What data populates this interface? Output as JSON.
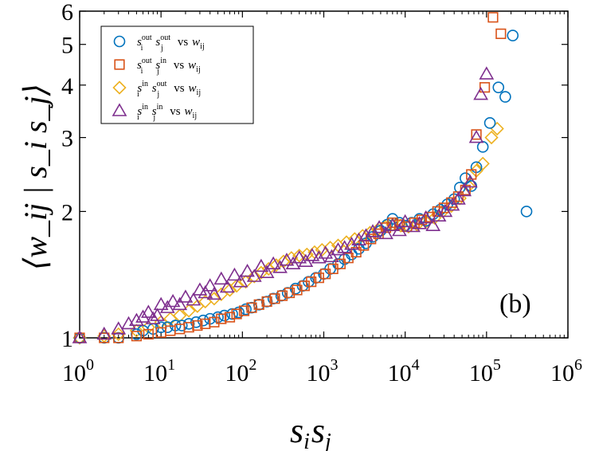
{
  "chart_data": {
    "type": "scatter",
    "title": "",
    "panel_label": "(b)",
    "xlabel": {
      "base": "s",
      "sub1": "i",
      "base2": "s",
      "sub2": "j"
    },
    "ylabel": "⟨w_ij | s_i s_j⟩",
    "xscale": "log",
    "yscale": "log",
    "xlim": [
      1,
      1000000
    ],
    "ylim": [
      1,
      6
    ],
    "x_ticks": [
      {
        "value": 1,
        "base": "10",
        "exp": "0"
      },
      {
        "value": 10,
        "base": "10",
        "exp": "1"
      },
      {
        "value": 100,
        "base": "10",
        "exp": "2"
      },
      {
        "value": 1000,
        "base": "10",
        "exp": "3"
      },
      {
        "value": 10000,
        "base": "10",
        "exp": "4"
      },
      {
        "value": 100000,
        "base": "10",
        "exp": "5"
      },
      {
        "value": 1000000,
        "base": "10",
        "exp": "6"
      }
    ],
    "y_ticks": [
      {
        "value": 1,
        "label": "1"
      },
      {
        "value": 2,
        "label": "2"
      },
      {
        "value": 3,
        "label": "3"
      },
      {
        "value": 4,
        "label": "4"
      },
      {
        "value": 5,
        "label": "5"
      },
      {
        "value": 6,
        "label": "6"
      }
    ],
    "grid": false,
    "legend_position": "top-left",
    "series": [
      {
        "name": "s_i^out s_j^out vs w_ij",
        "legend": {
          "s": "s",
          "sup1": "out",
          "sub1": "i",
          "sup2": "out",
          "sub2": "j",
          "vs": "vs",
          "w": "w",
          "wsub": "ij"
        },
        "marker": "circle",
        "color": "#0072BD",
        "points": [
          [
            1,
            1.0
          ],
          [
            2,
            1.0
          ],
          [
            3,
            1.0
          ],
          [
            5,
            1.02
          ],
          [
            6,
            1.04
          ],
          [
            8,
            1.05
          ],
          [
            10,
            1.06
          ],
          [
            12,
            1.06
          ],
          [
            15,
            1.07
          ],
          [
            18,
            1.07
          ],
          [
            22,
            1.08
          ],
          [
            27,
            1.09
          ],
          [
            33,
            1.1
          ],
          [
            40,
            1.11
          ],
          [
            50,
            1.12
          ],
          [
            60,
            1.13
          ],
          [
            75,
            1.14
          ],
          [
            90,
            1.15
          ],
          [
            110,
            1.17
          ],
          [
            130,
            1.18
          ],
          [
            160,
            1.2
          ],
          [
            200,
            1.22
          ],
          [
            240,
            1.24
          ],
          [
            300,
            1.26
          ],
          [
            360,
            1.28
          ],
          [
            450,
            1.31
          ],
          [
            550,
            1.33
          ],
          [
            650,
            1.36
          ],
          [
            800,
            1.39
          ],
          [
            1000,
            1.42
          ],
          [
            1200,
            1.46
          ],
          [
            1500,
            1.5
          ],
          [
            1800,
            1.54
          ],
          [
            2200,
            1.58
          ],
          [
            2700,
            1.63
          ],
          [
            3300,
            1.68
          ],
          [
            4000,
            1.74
          ],
          [
            5000,
            1.8
          ],
          [
            6000,
            1.86
          ],
          [
            7000,
            1.92
          ],
          [
            8500,
            1.88
          ],
          [
            10000,
            1.85
          ],
          [
            12000,
            1.88
          ],
          [
            15000,
            1.92
          ],
          [
            18000,
            1.9
          ],
          [
            22000,
            1.97
          ],
          [
            27000,
            2.02
          ],
          [
            33000,
            2.08
          ],
          [
            40000,
            2.14
          ],
          [
            47000,
            2.28
          ],
          [
            55000,
            2.4
          ],
          [
            65000,
            2.3
          ],
          [
            75000,
            2.55
          ],
          [
            90000,
            2.85
          ],
          [
            110000,
            3.25
          ],
          [
            140000,
            3.95
          ],
          [
            170000,
            3.75
          ],
          [
            210000,
            5.25
          ],
          [
            310000,
            2.0
          ]
        ]
      },
      {
        "name": "s_i^out s_j^in vs w_ij",
        "legend": {
          "s": "s",
          "sup1": "out",
          "sub1": "i",
          "sup2": "in",
          "sub2": "j",
          "vs": "vs",
          "w": "w",
          "wsub": "ij"
        },
        "marker": "square",
        "color": "#D95319",
        "points": [
          [
            1,
            1.0
          ],
          [
            2,
            1.0
          ],
          [
            3,
            1.0
          ],
          [
            5,
            1.01
          ],
          [
            7,
            1.02
          ],
          [
            10,
            1.03
          ],
          [
            13,
            1.04
          ],
          [
            17,
            1.05
          ],
          [
            22,
            1.06
          ],
          [
            28,
            1.07
          ],
          [
            35,
            1.08
          ],
          [
            45,
            1.09
          ],
          [
            55,
            1.11
          ],
          [
            70,
            1.12
          ],
          [
            85,
            1.14
          ],
          [
            105,
            1.16
          ],
          [
            130,
            1.18
          ],
          [
            160,
            1.2
          ],
          [
            200,
            1.22
          ],
          [
            250,
            1.24
          ],
          [
            310,
            1.26
          ],
          [
            380,
            1.28
          ],
          [
            470,
            1.3
          ],
          [
            580,
            1.33
          ],
          [
            700,
            1.36
          ],
          [
            870,
            1.39
          ],
          [
            1050,
            1.42
          ],
          [
            1300,
            1.46
          ],
          [
            1600,
            1.5
          ],
          [
            2000,
            1.55
          ],
          [
            2500,
            1.6
          ],
          [
            3100,
            1.66
          ],
          [
            3800,
            1.72
          ],
          [
            4700,
            1.77
          ],
          [
            5800,
            1.83
          ],
          [
            7000,
            1.88
          ],
          [
            8500,
            1.86
          ],
          [
            10500,
            1.84
          ],
          [
            13000,
            1.88
          ],
          [
            16000,
            1.91
          ],
          [
            20000,
            1.94
          ],
          [
            25000,
            2.0
          ],
          [
            30000,
            2.04
          ],
          [
            37000,
            2.1
          ],
          [
            45000,
            2.17
          ],
          [
            55000,
            2.25
          ],
          [
            65000,
            2.45
          ],
          [
            75000,
            3.05
          ],
          [
            95000,
            3.95
          ],
          [
            120000,
            5.8
          ],
          [
            150000,
            5.3
          ]
        ]
      },
      {
        "name": "s_i^in s_j^out vs w_ij",
        "legend": {
          "s": "s",
          "sup1": "in",
          "sub1": "i",
          "sup2": "out",
          "sub2": "j",
          "vs": "vs",
          "w": "w",
          "wsub": "ij"
        },
        "marker": "diamond",
        "color": "#EDB120",
        "points": [
          [
            1,
            1.0
          ],
          [
            2,
            1.01
          ],
          [
            3,
            1.02
          ],
          [
            5,
            1.04
          ],
          [
            7,
            1.06
          ],
          [
            10,
            1.09
          ],
          [
            13,
            1.11
          ],
          [
            17,
            1.13
          ],
          [
            22,
            1.16
          ],
          [
            28,
            1.19
          ],
          [
            35,
            1.22
          ],
          [
            45,
            1.24
          ],
          [
            55,
            1.27
          ],
          [
            70,
            1.3
          ],
          [
            85,
            1.33
          ],
          [
            110,
            1.36
          ],
          [
            140,
            1.4
          ],
          [
            170,
            1.43
          ],
          [
            210,
            1.46
          ],
          [
            260,
            1.49
          ],
          [
            320,
            1.52
          ],
          [
            400,
            1.55
          ],
          [
            500,
            1.57
          ],
          [
            620,
            1.58
          ],
          [
            770,
            1.6
          ],
          [
            950,
            1.62
          ],
          [
            1200,
            1.64
          ],
          [
            1500,
            1.66
          ],
          [
            1900,
            1.69
          ],
          [
            2400,
            1.72
          ],
          [
            3000,
            1.75
          ],
          [
            3700,
            1.78
          ],
          [
            4600,
            1.81
          ],
          [
            5700,
            1.84
          ],
          [
            7000,
            1.86
          ],
          [
            8800,
            1.85
          ],
          [
            11000,
            1.84
          ],
          [
            14000,
            1.86
          ],
          [
            18000,
            1.89
          ],
          [
            23000,
            1.93
          ],
          [
            29000,
            2.0
          ],
          [
            37000,
            2.06
          ],
          [
            47000,
            2.15
          ],
          [
            60000,
            2.3
          ],
          [
            75000,
            2.5
          ],
          [
            90000,
            2.6
          ],
          [
            115000,
            3.0
          ],
          [
            135000,
            3.15
          ]
        ]
      },
      {
        "name": "s_i^in s_j^in vs w_ij",
        "legend": {
          "s": "s",
          "sup1": "in",
          "sub1": "i",
          "sup2": "in",
          "sub2": "j",
          "vs": "vs",
          "w": "w",
          "wsub": "ij"
        },
        "marker": "triangle",
        "color": "#7E2F8E",
        "points": [
          [
            1,
            1.0
          ],
          [
            2,
            1.02
          ],
          [
            3,
            1.05
          ],
          [
            4,
            1.08
          ],
          [
            5,
            1.1
          ],
          [
            6,
            1.12
          ],
          [
            7,
            1.15
          ],
          [
            8,
            1.11
          ],
          [
            9,
            1.13
          ],
          [
            10,
            1.2
          ],
          [
            12,
            1.18
          ],
          [
            14,
            1.22
          ],
          [
            17,
            1.2
          ],
          [
            20,
            1.25
          ],
          [
            25,
            1.23
          ],
          [
            30,
            1.3
          ],
          [
            35,
            1.28
          ],
          [
            40,
            1.33
          ],
          [
            45,
            1.27
          ],
          [
            55,
            1.38
          ],
          [
            65,
            1.32
          ],
          [
            80,
            1.41
          ],
          [
            95,
            1.36
          ],
          [
            115,
            1.44
          ],
          [
            140,
            1.4
          ],
          [
            170,
            1.48
          ],
          [
            200,
            1.43
          ],
          [
            240,
            1.5
          ],
          [
            290,
            1.47
          ],
          [
            350,
            1.53
          ],
          [
            420,
            1.5
          ],
          [
            500,
            1.55
          ],
          [
            600,
            1.52
          ],
          [
            720,
            1.57
          ],
          [
            870,
            1.55
          ],
          [
            1050,
            1.59
          ],
          [
            1250,
            1.56
          ],
          [
            1500,
            1.62
          ],
          [
            1800,
            1.64
          ],
          [
            2200,
            1.67
          ],
          [
            2700,
            1.71
          ],
          [
            3300,
            1.75
          ],
          [
            4000,
            1.79
          ],
          [
            4800,
            1.83
          ],
          [
            5800,
            1.77
          ],
          [
            7000,
            1.85
          ],
          [
            8500,
            1.8
          ],
          [
            10000,
            1.89
          ],
          [
            12500,
            1.84
          ],
          [
            15000,
            1.87
          ],
          [
            18000,
            1.93
          ],
          [
            22000,
            1.85
          ],
          [
            26000,
            1.95
          ],
          [
            31000,
            2.0
          ],
          [
            38000,
            2.07
          ],
          [
            45000,
            2.14
          ],
          [
            53000,
            2.24
          ],
          [
            63000,
            2.35
          ],
          [
            75000,
            3.0
          ],
          [
            85000,
            3.8
          ],
          [
            100000,
            4.25
          ]
        ]
      }
    ]
  }
}
